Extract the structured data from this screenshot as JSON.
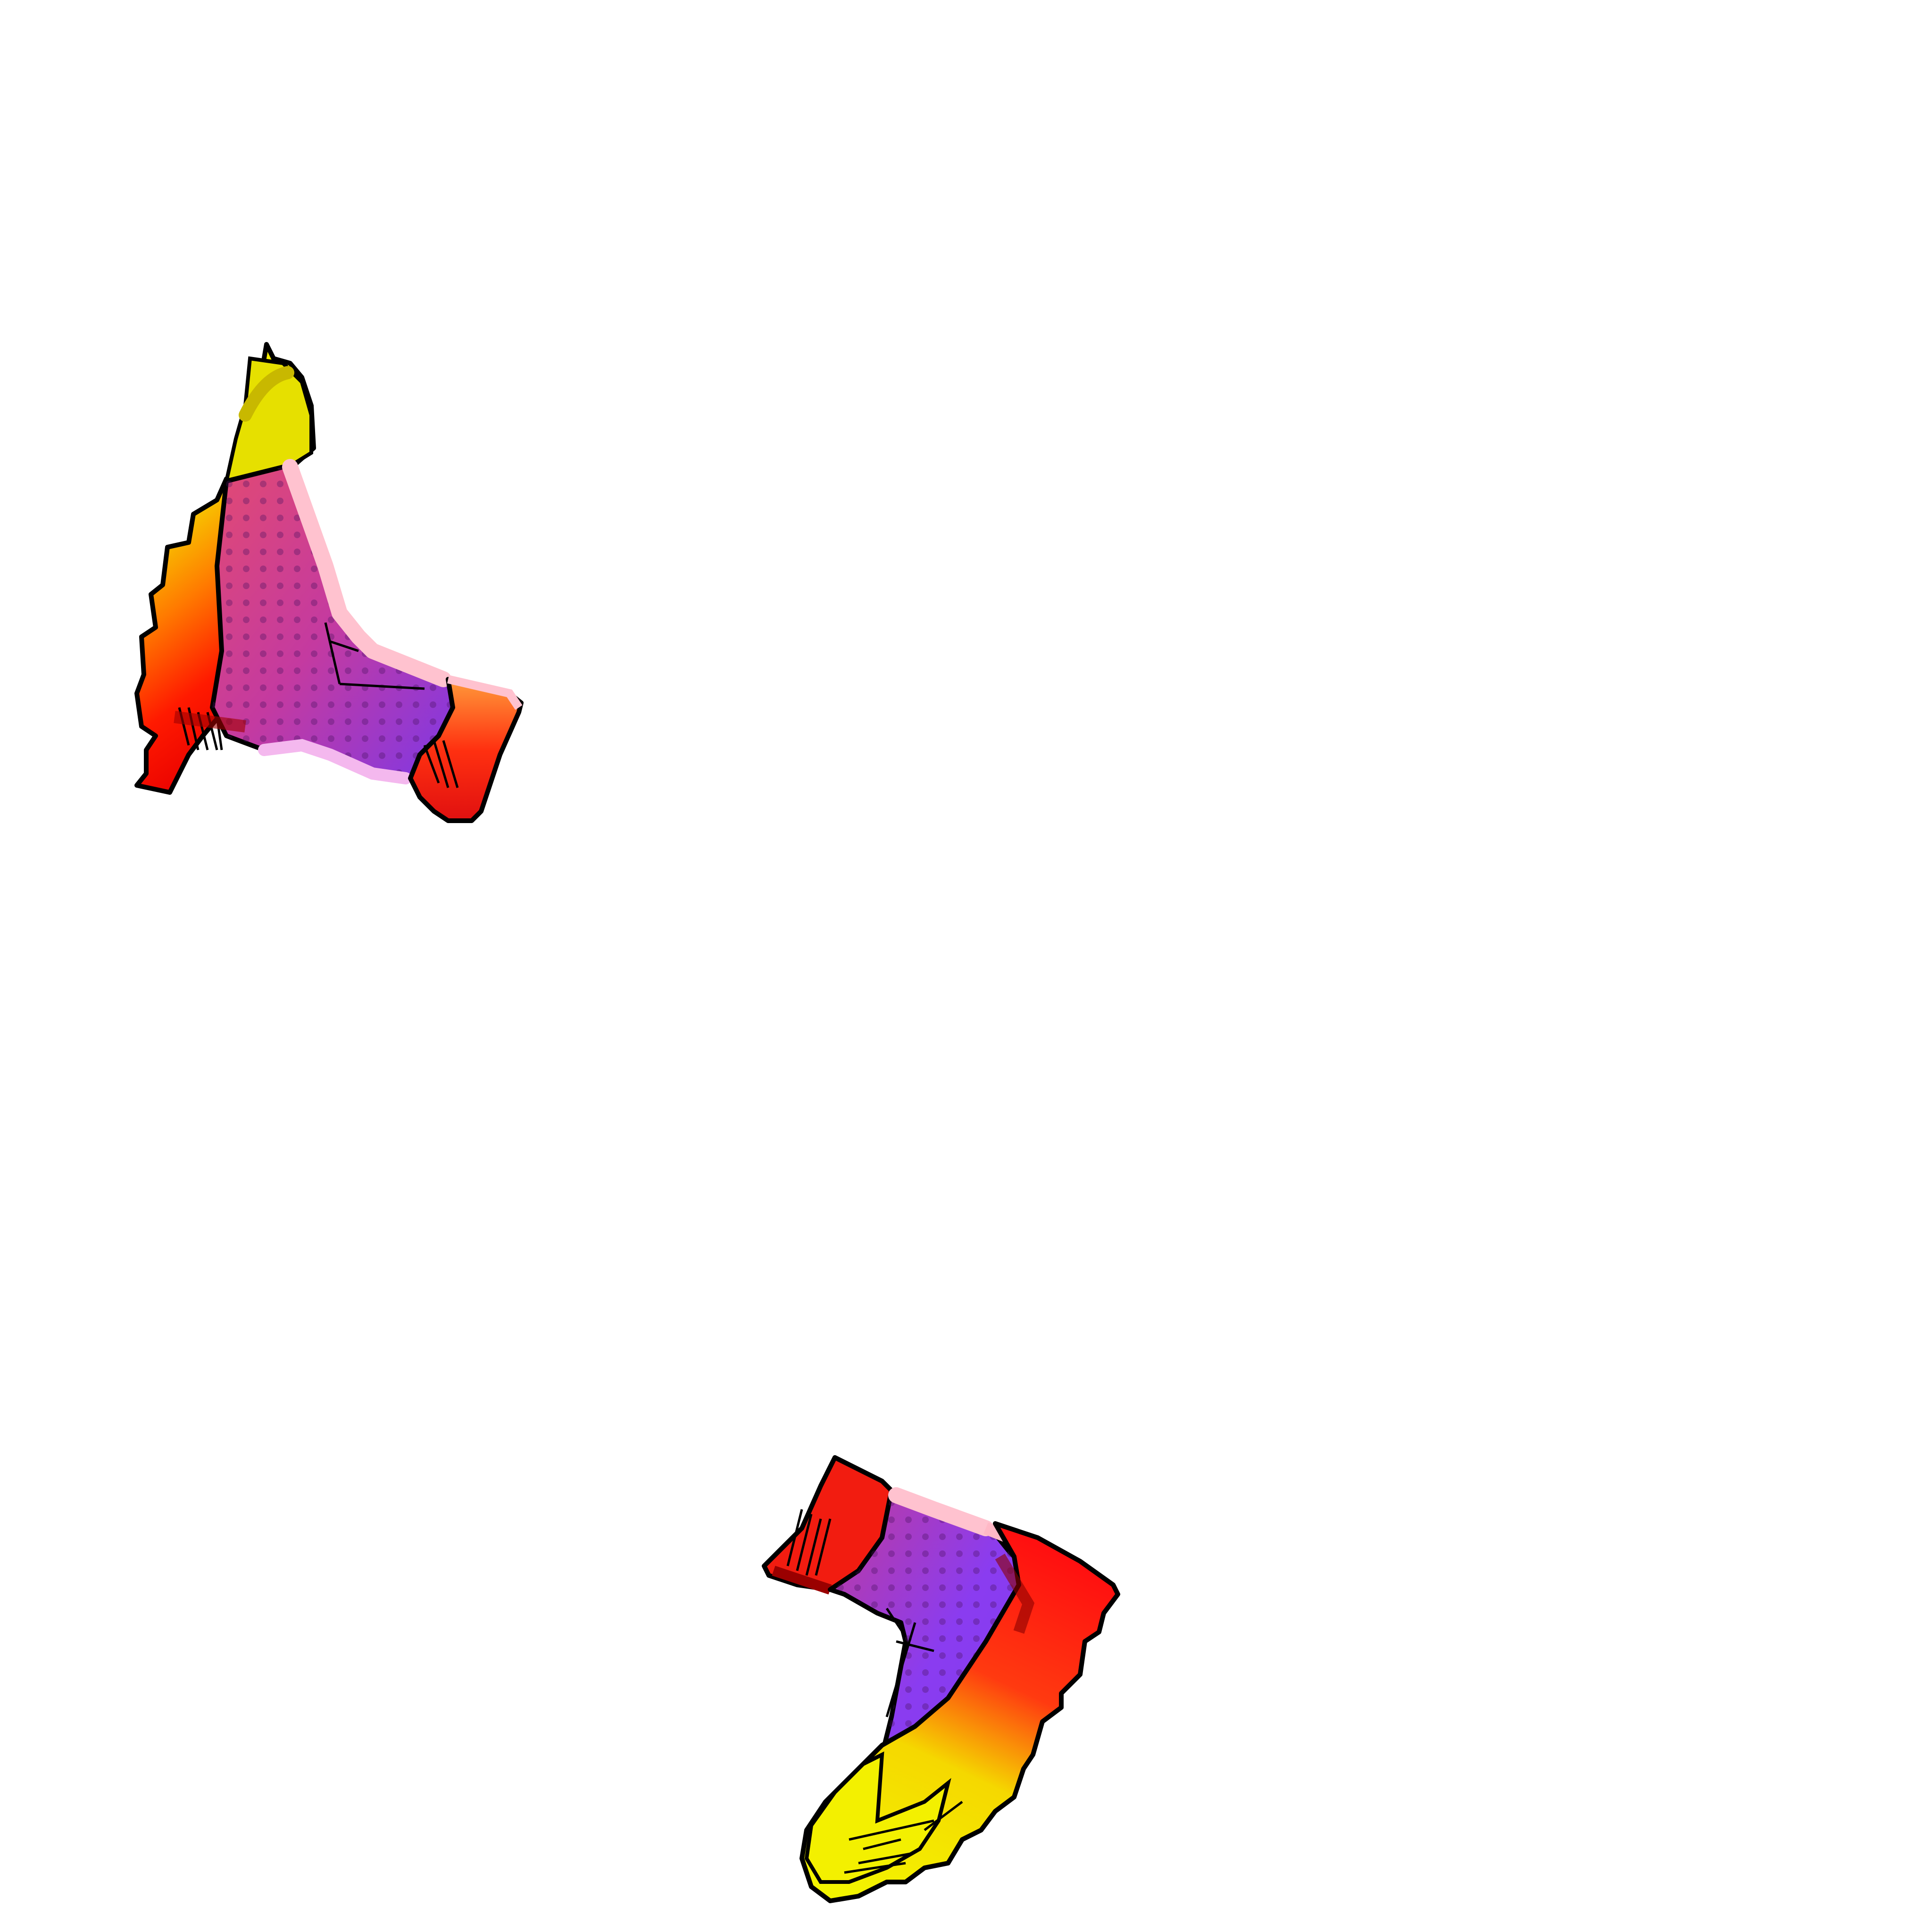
{
  "scene": {
    "background": "#ffffff",
    "subjects": [
      "boot-left",
      "boot-right"
    ]
  },
  "colors": {
    "sole_yellow": "#f3f000",
    "sole_red": "#ff1a00",
    "body_pink": "#e0407a",
    "body_purple": "#8a3cf0",
    "cuff_red": "#f21c10",
    "outline": "#000000",
    "highlight": "#ffc2cf",
    "dots": "#5a1a70"
  }
}
